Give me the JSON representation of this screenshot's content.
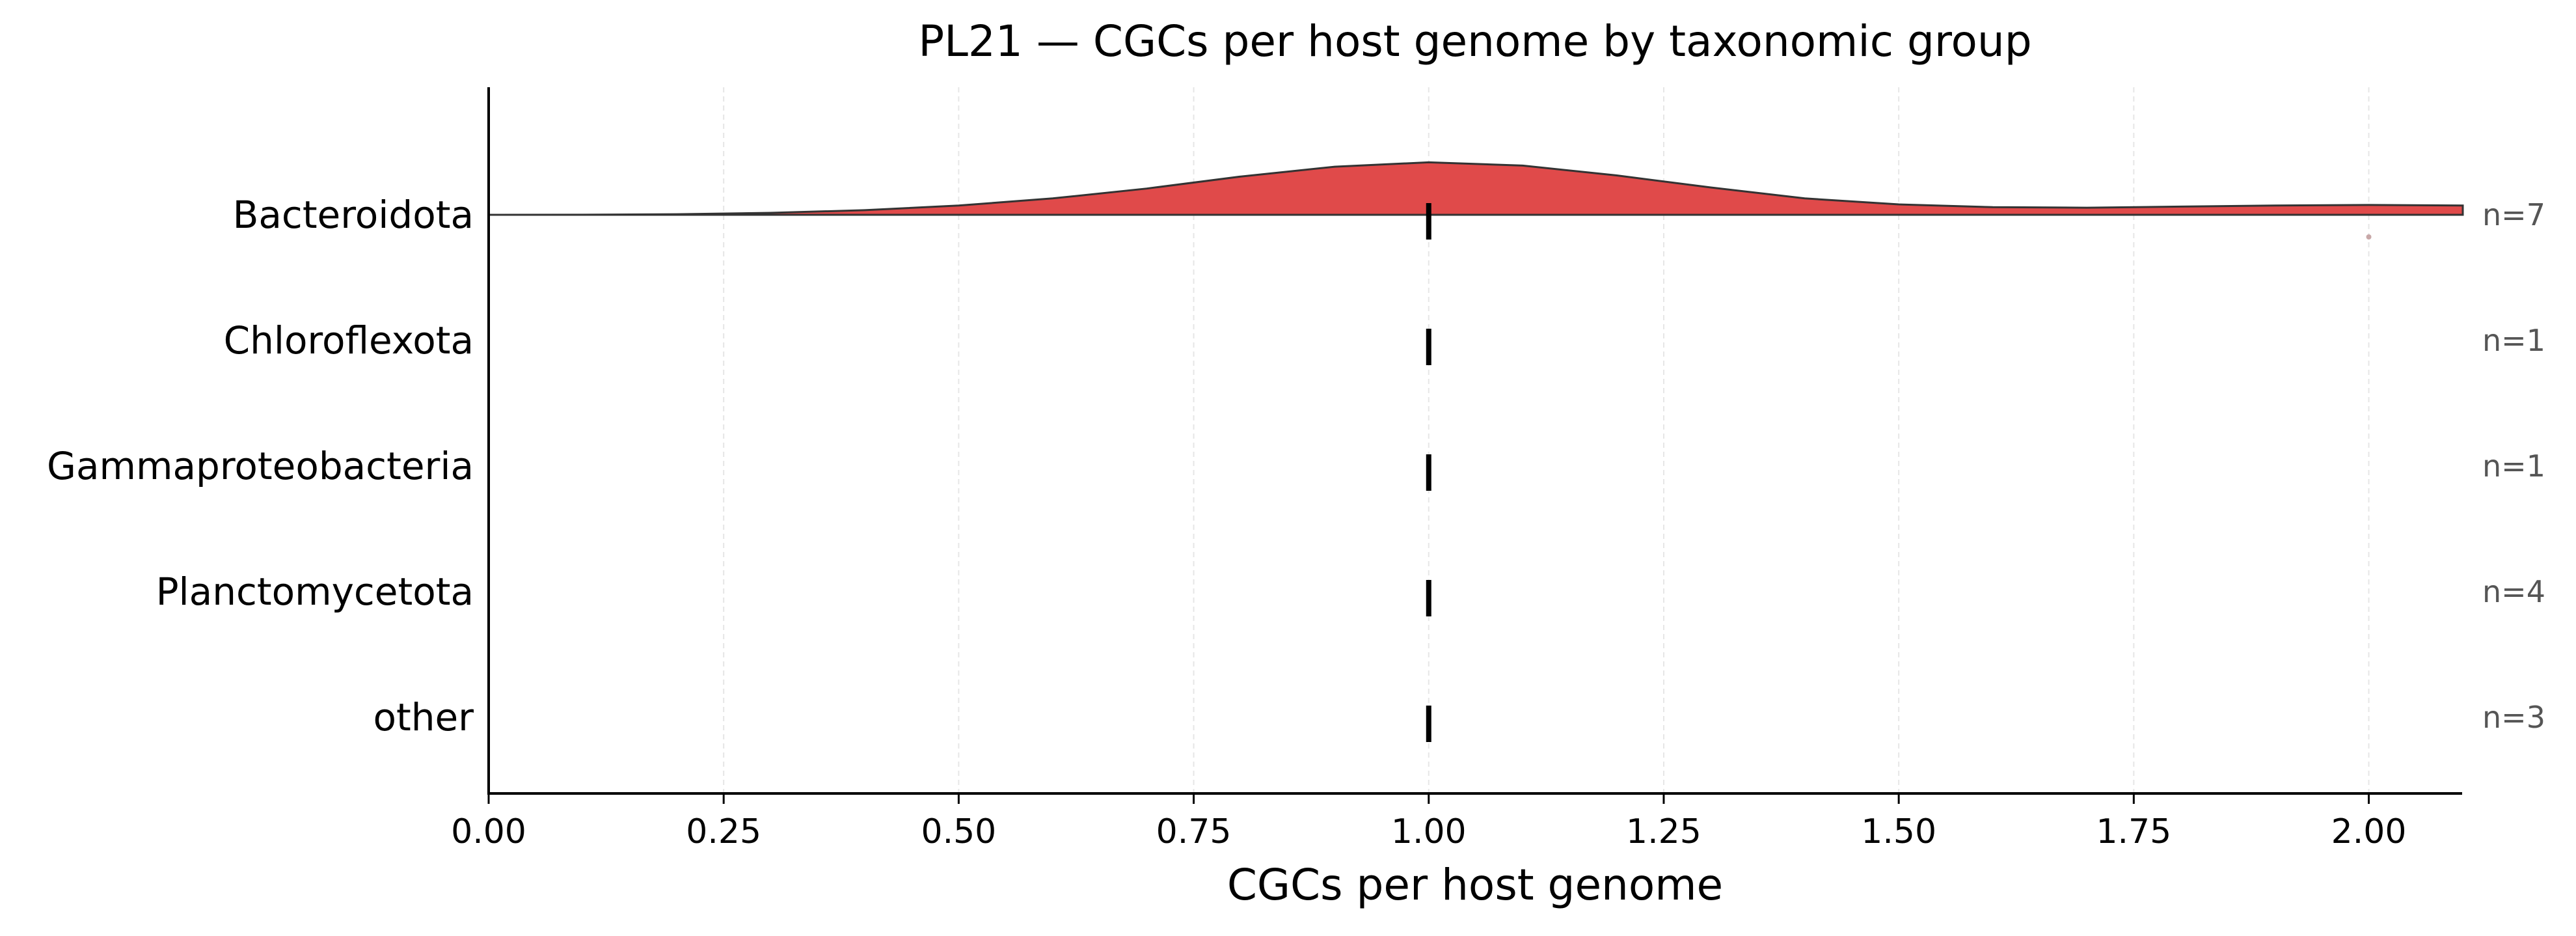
{
  "chart_data": {
    "type": "ridgeline",
    "title": "PL21 — CGCs per host genome by taxonomic group",
    "xlabel": "CGCs per host genome",
    "ylabel": "",
    "xlim": [
      0,
      2.1
    ],
    "x_ticks": [
      "0.00",
      "0.25",
      "0.50",
      "0.75",
      "1.00",
      "1.25",
      "1.50",
      "1.75",
      "2.00"
    ],
    "x_tick_values": [
      0,
      0.25,
      0.5,
      0.75,
      1.0,
      1.25,
      1.5,
      1.75,
      2.0
    ],
    "grid": "vertical dashed at x ticks",
    "groups": [
      {
        "name": "Bacteroidota",
        "n_label": "n=7",
        "median": 1.0,
        "color": "#e04a4a",
        "density": {
          "x": [
            0.0,
            0.1,
            0.2,
            0.3,
            0.4,
            0.5,
            0.6,
            0.7,
            0.8,
            0.9,
            1.0,
            1.1,
            1.2,
            1.3,
            1.4,
            1.5,
            1.6,
            1.7,
            1.8,
            1.9,
            2.0,
            2.1
          ],
          "y": [
            0.0,
            0.002,
            0.01,
            0.035,
            0.085,
            0.17,
            0.3,
            0.48,
            0.7,
            0.88,
            0.96,
            0.9,
            0.72,
            0.5,
            0.3,
            0.19,
            0.14,
            0.13,
            0.15,
            0.17,
            0.18,
            0.17
          ]
        },
        "outliers": [
          2.0
        ]
      },
      {
        "name": "Chloroflexota",
        "n_label": "n=1",
        "median": 1.0
      },
      {
        "name": "Gammaproteobacteria",
        "n_label": "n=1",
        "median": 1.0
      },
      {
        "name": "Planctomycetota",
        "n_label": "n=4",
        "median": 1.0
      },
      {
        "name": "other",
        "n_label": "n=3",
        "median": 1.0
      }
    ]
  }
}
